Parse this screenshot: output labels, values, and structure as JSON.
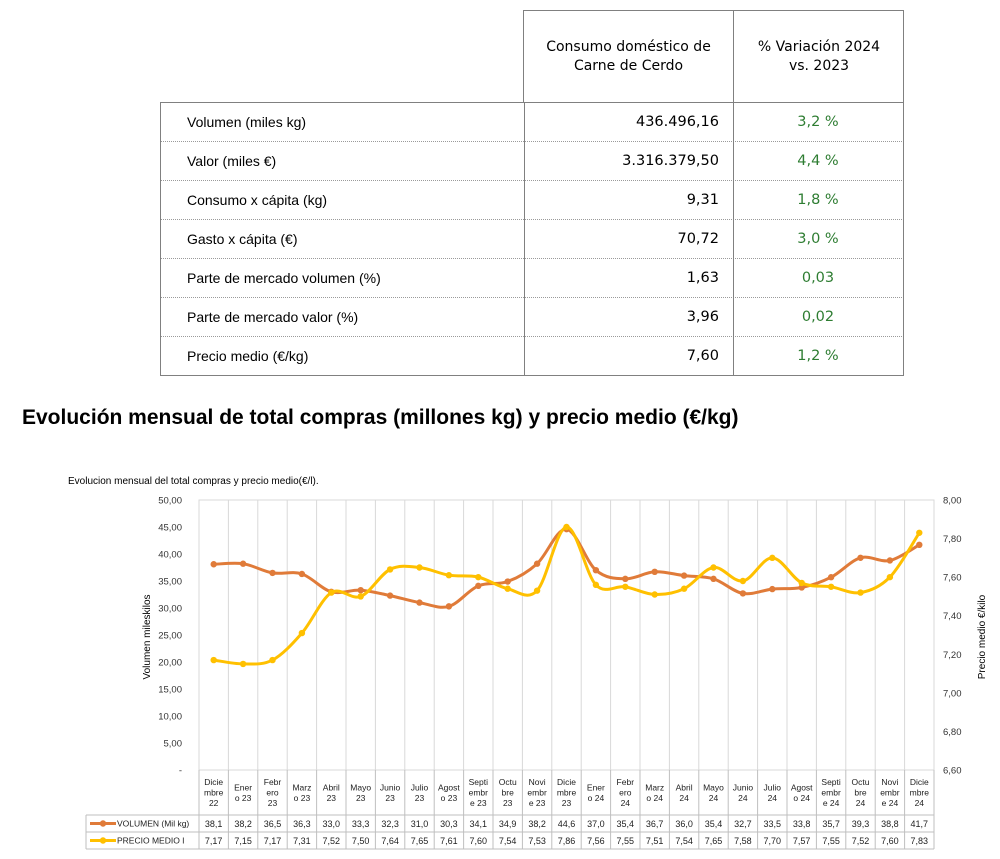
{
  "summary_table": {
    "header": {
      "col1_line1": "Consumo doméstico de",
      "col1_line2": "Carne de Cerdo",
      "col2_line1": "% Variación 2024",
      "col2_line2": "vs. 2023"
    },
    "rows": [
      {
        "label": "Volumen (miles kg)",
        "value": "436.496,16",
        "variation": "3,2 %"
      },
      {
        "label": "Valor (miles €)",
        "value": "3.316.379,50",
        "variation": "4,4 %"
      },
      {
        "label": "Consumo x cápita (kg)",
        "value": "9,31",
        "variation": "1,8 %"
      },
      {
        "label": "Gasto x cápita (€)",
        "value": "70,72",
        "variation": "3,0 %"
      },
      {
        "label": "Parte de mercado volumen (%)",
        "value": "1,63",
        "variation": "0,03"
      },
      {
        "label": "Parte de mercado valor (%)",
        "value": "3,96",
        "variation": "0,02"
      },
      {
        "label": "Precio medio (€/kg)",
        "value": "7,60",
        "variation": "1,2 %"
      }
    ]
  },
  "section_title": "Evolución mensual de total compras (millones kg) y precio medio (€/kg)",
  "colors": {
    "volume": "#e07b39",
    "price": "#ffc000",
    "variation_text": "#2e7d32"
  },
  "chart_data": {
    "type": "line",
    "title": "Evolucion mensual del total compras y precio medio(€/l).",
    "ylabel": "Volumen mileskilos",
    "y2label": "Precio medio €/kilo",
    "ylim": [
      0,
      50
    ],
    "y2lim": [
      6.6,
      8.0
    ],
    "yticks": [
      "-",
      "5,00",
      "10,00",
      "15,00",
      "20,00",
      "25,00",
      "30,00",
      "35,00",
      "40,00",
      "45,00",
      "50,00"
    ],
    "y2ticks": [
      "6,60",
      "6,80",
      "7,00",
      "7,20",
      "7,40",
      "7,60",
      "7,80",
      "8,00"
    ],
    "grid": "vertical",
    "categories": [
      [
        "Dicie",
        "mbre",
        "22"
      ],
      [
        "Ener",
        "o 23"
      ],
      [
        "Febr",
        "ero",
        "23"
      ],
      [
        "Marz",
        "o 23"
      ],
      [
        "Abril",
        "23"
      ],
      [
        "Mayo",
        "23"
      ],
      [
        "Junio",
        "23"
      ],
      [
        "Julio",
        "23"
      ],
      [
        "Agost",
        "o 23"
      ],
      [
        "Septi",
        "embr",
        "e 23"
      ],
      [
        "Octu",
        "bre",
        "23"
      ],
      [
        "Novi",
        "embr",
        "e 23"
      ],
      [
        "Dicie",
        "mbre",
        "23"
      ],
      [
        "Ener",
        "o 24"
      ],
      [
        "Febr",
        "ero",
        "24"
      ],
      [
        "Marz",
        "o 24"
      ],
      [
        "Abril",
        "24"
      ],
      [
        "Mayo",
        "24"
      ],
      [
        "Junio",
        "24"
      ],
      [
        "Julio",
        "24"
      ],
      [
        "Agost",
        "o 24"
      ],
      [
        "Septi",
        "embr",
        "e 24"
      ],
      [
        "Octu",
        "bre",
        "24"
      ],
      [
        "Novi",
        "embr",
        "e 24"
      ],
      [
        "Dicie",
        "mbre",
        "24"
      ]
    ],
    "series": [
      {
        "name": "VOLUMEN (Mil kg)",
        "axis": "left",
        "values": [
          38.1,
          38.2,
          36.5,
          36.3,
          33.0,
          33.3,
          32.3,
          31.0,
          30.3,
          34.1,
          34.9,
          38.2,
          44.6,
          37.0,
          35.4,
          36.7,
          36.0,
          35.4,
          32.7,
          33.5,
          33.8,
          35.7,
          39.3,
          38.8,
          41.7
        ],
        "labels": [
          "38,1",
          "38,2",
          "36,5",
          "36,3",
          "33,0",
          "33,3",
          "32,3",
          "31,0",
          "30,3",
          "34,1",
          "34,9",
          "38,2",
          "44,6",
          "37,0",
          "35,4",
          "36,7",
          "36,0",
          "35,4",
          "32,7",
          "33,5",
          "33,8",
          "35,7",
          "39,3",
          "38,8",
          "41,7"
        ]
      },
      {
        "name": "PRECIO MEDIO I",
        "axis": "right",
        "values": [
          7.17,
          7.15,
          7.17,
          7.31,
          7.52,
          7.5,
          7.64,
          7.65,
          7.61,
          7.6,
          7.54,
          7.53,
          7.86,
          7.56,
          7.55,
          7.51,
          7.54,
          7.65,
          7.58,
          7.7,
          7.57,
          7.55,
          7.52,
          7.6,
          7.83
        ],
        "labels": [
          "7,17",
          "7,15",
          "7,17",
          "7,31",
          "7,52",
          "7,50",
          "7,64",
          "7,65",
          "7,61",
          "7,60",
          "7,54",
          "7,53",
          "7,86",
          "7,56",
          "7,55",
          "7,51",
          "7,54",
          "7,65",
          "7,58",
          "7,70",
          "7,57",
          "7,55",
          "7,52",
          "7,60",
          "7,83"
        ]
      }
    ]
  }
}
